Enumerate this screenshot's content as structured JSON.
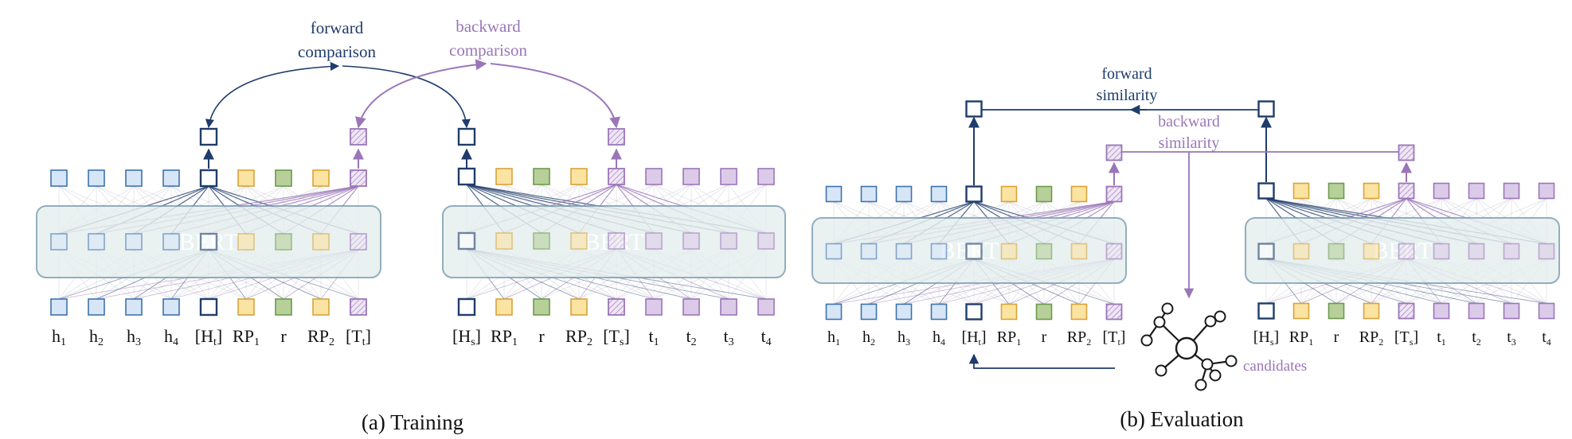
{
  "colors": {
    "dark_blue": "#1f3c6b",
    "purple": "#9a76b8",
    "blue_fill": "#d7e6f6",
    "blue_stroke": "#3e72b0",
    "yellow_fill": "#fbe3a2",
    "yellow_stroke": "#d8a33a",
    "green_fill": "#b7d09a",
    "green_stroke": "#6c9a4e",
    "purple_fill": "#dccbe8",
    "purple_stroke": "#9a76b8",
    "bert_fill": "#e5eeee",
    "bert_stroke": "#7b9db0"
  },
  "bert_label": "BERT",
  "training": {
    "caption": "(a) Training",
    "forward_label": [
      "forward",
      "comparison"
    ],
    "backward_label": [
      "backward",
      "comparison"
    ],
    "left_tokens": [
      {
        "main": "h",
        "sub": "1",
        "color": "blue"
      },
      {
        "main": "h",
        "sub": "2",
        "color": "blue"
      },
      {
        "main": "h",
        "sub": "3",
        "color": "blue"
      },
      {
        "main": "h",
        "sub": "4",
        "color": "blue"
      },
      {
        "main": "[H",
        "sub": "t",
        "tail": "]",
        "color": "head"
      },
      {
        "main": "RP",
        "sub": "1",
        "color": "yellow"
      },
      {
        "main": "r",
        "sub": "",
        "color": "green"
      },
      {
        "main": "RP",
        "sub": "2",
        "color": "yellow"
      },
      {
        "main": "[T",
        "sub": "t",
        "tail": "]",
        "color": "tail"
      }
    ],
    "right_tokens": [
      {
        "main": "[H",
        "sub": "s",
        "tail": "]",
        "color": "head"
      },
      {
        "main": "RP",
        "sub": "1",
        "color": "yellow"
      },
      {
        "main": "r",
        "sub": "",
        "color": "green"
      },
      {
        "main": "RP",
        "sub": "2",
        "color": "yellow"
      },
      {
        "main": "[T",
        "sub": "s",
        "tail": "]",
        "color": "tail"
      },
      {
        "main": "t",
        "sub": "1",
        "color": "purple"
      },
      {
        "main": "t",
        "sub": "2",
        "color": "purple"
      },
      {
        "main": "t",
        "sub": "3",
        "color": "purple"
      },
      {
        "main": "t",
        "sub": "4",
        "color": "purple"
      }
    ]
  },
  "evaluation": {
    "caption": "(b) Evaluation",
    "forward_label": [
      "forward",
      "similarity"
    ],
    "backward_label": [
      "backward",
      "similarity"
    ],
    "candidates_label": "candidates",
    "left_tokens": [
      {
        "main": "h",
        "sub": "1",
        "color": "blue"
      },
      {
        "main": "h",
        "sub": "2",
        "color": "blue"
      },
      {
        "main": "h",
        "sub": "3",
        "color": "blue"
      },
      {
        "main": "h",
        "sub": "4",
        "color": "blue"
      },
      {
        "main": "[H",
        "sub": "t",
        "tail": "]",
        "color": "head"
      },
      {
        "main": "RP",
        "sub": "1",
        "color": "yellow"
      },
      {
        "main": "r",
        "sub": "",
        "color": "green"
      },
      {
        "main": "RP",
        "sub": "2",
        "color": "yellow"
      },
      {
        "main": "[T",
        "sub": "t",
        "tail": "]",
        "color": "tail"
      }
    ],
    "right_tokens": [
      {
        "main": "[H",
        "sub": "s",
        "tail": "]",
        "color": "head"
      },
      {
        "main": "RP",
        "sub": "1",
        "color": "yellow"
      },
      {
        "main": "r",
        "sub": "",
        "color": "green"
      },
      {
        "main": "RP",
        "sub": "2",
        "color": "yellow"
      },
      {
        "main": "[T",
        "sub": "s",
        "tail": "]",
        "color": "tail"
      },
      {
        "main": "t",
        "sub": "1",
        "color": "purple"
      },
      {
        "main": "t",
        "sub": "2",
        "color": "purple"
      },
      {
        "main": "t",
        "sub": "3",
        "color": "purple"
      },
      {
        "main": "t",
        "sub": "4",
        "color": "purple"
      }
    ]
  }
}
